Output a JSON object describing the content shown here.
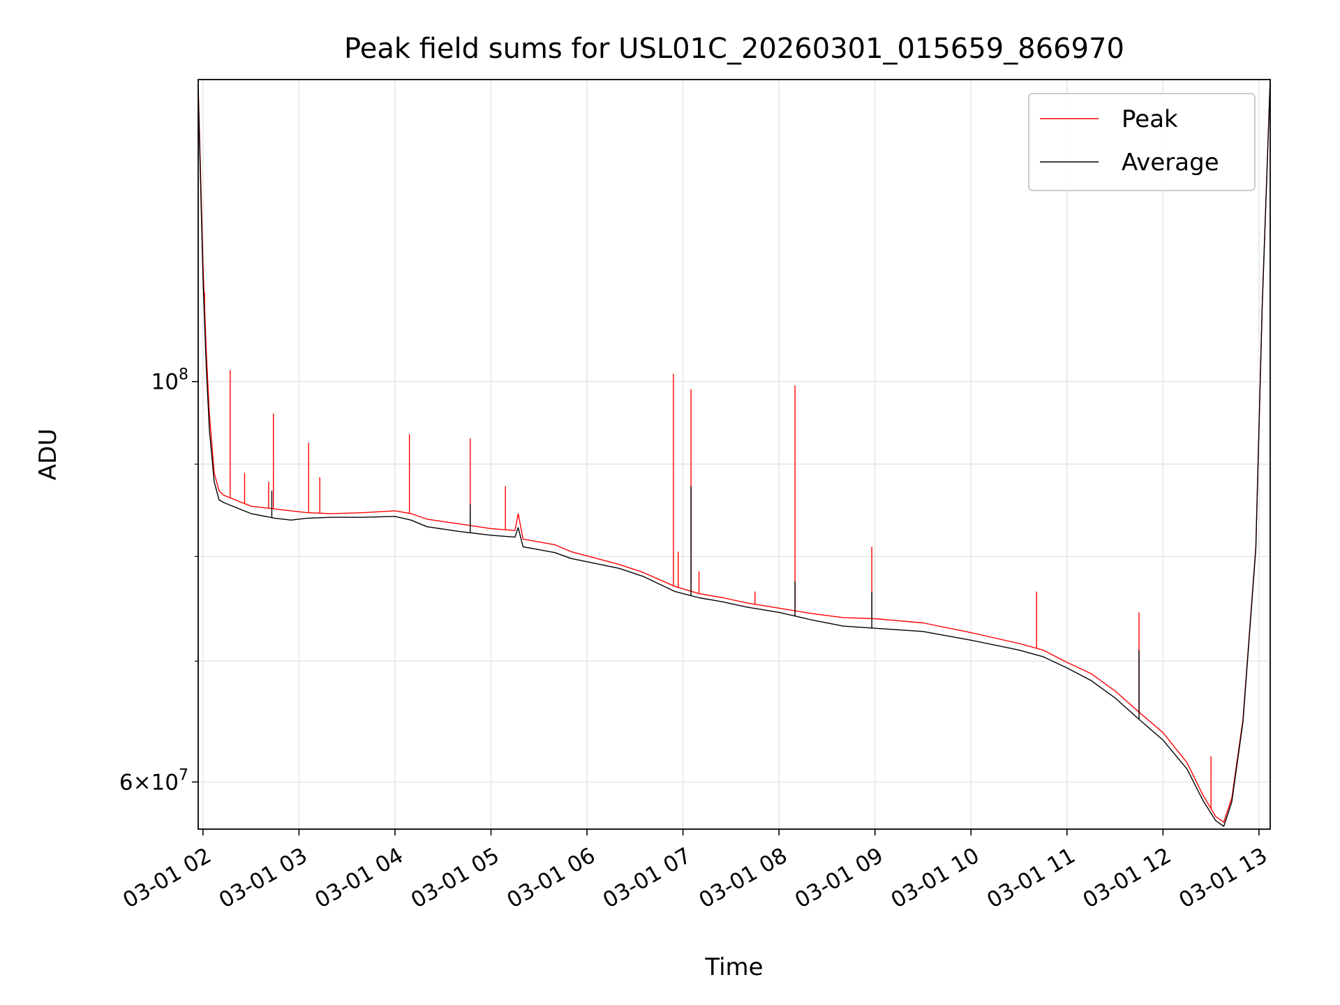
{
  "chart_data": {
    "type": "line",
    "title": "Peak field sums for USL01C_20260301_015659_866970",
    "xlabel": "Time",
    "ylabel": "ADU",
    "yscale": "log",
    "xlim": [
      "2026-03-01 01:57",
      "2026-03-01 13:07"
    ],
    "ylim": [
      56500000,
      147000000
    ],
    "grid": true,
    "legend_position": "upper-right",
    "x_ticks": [
      "2026-03-01 02:00",
      "2026-03-01 03:00",
      "2026-03-01 04:00",
      "2026-03-01 05:00",
      "2026-03-01 06:00",
      "2026-03-01 07:00",
      "2026-03-01 08:00",
      "2026-03-01 09:00",
      "2026-03-01 10:00",
      "2026-03-01 11:00",
      "2026-03-01 12:00",
      "2026-03-01 13:00"
    ],
    "x_tick_labels": [
      "03-01 02",
      "03-01 03",
      "03-01 04",
      "03-01 05",
      "03-01 06",
      "03-01 07",
      "03-01 08",
      "03-01 09",
      "03-01 10",
      "03-01 11",
      "03-01 12",
      "03-01 13"
    ],
    "y_major_ticks": [
      {
        "value": 60000000,
        "mantissa": "6",
        "base": "10",
        "exponent": "7"
      },
      {
        "value": 100000000,
        "mantissa": "",
        "base": "10",
        "exponent": "8"
      }
    ],
    "y_minor_ticks": [
      70000000,
      80000000,
      90000000
    ],
    "series": [
      {
        "name": "Peak",
        "color": "#ff0000",
        "points": [
          [
            "2026-03-01 01:57",
            146000000
          ],
          [
            "2026-03-01 02:00",
            116000000
          ],
          [
            "2026-03-01 02:02",
            104000000
          ],
          [
            "2026-03-01 02:04",
            96000000
          ],
          [
            "2026-03-01 02:07",
            89000000
          ],
          [
            "2026-03-01 02:10",
            87000000
          ],
          [
            "2026-03-01 02:13",
            86500000
          ],
          [
            "2026-03-01 02:20",
            86000000
          ],
          [
            "2026-03-01 02:30",
            85300000
          ],
          [
            "2026-03-01 02:45",
            85000000
          ],
          [
            "2026-03-01 02:55",
            84800000
          ],
          [
            "2026-03-01 03:05",
            84600000
          ],
          [
            "2026-03-01 03:20",
            84500000
          ],
          [
            "2026-03-01 03:40",
            84600000
          ],
          [
            "2026-03-01 04:00",
            84800000
          ],
          [
            "2026-03-01 04:10",
            84500000
          ],
          [
            "2026-03-01 04:20",
            83900000
          ],
          [
            "2026-03-01 04:40",
            83400000
          ],
          [
            "2026-03-01 05:00",
            82900000
          ],
          [
            "2026-03-01 05:15",
            82700000
          ],
          [
            "2026-03-01 05:17",
            84500000
          ],
          [
            "2026-03-01 05:20",
            81800000
          ],
          [
            "2026-03-01 05:40",
            81200000
          ],
          [
            "2026-03-01 05:50",
            80500000
          ],
          [
            "2026-03-01 06:20",
            79200000
          ],
          [
            "2026-03-01 06:35",
            78400000
          ],
          [
            "2026-03-01 06:55",
            77000000
          ],
          [
            "2026-03-01 07:10",
            76300000
          ],
          [
            "2026-03-01 07:25",
            75900000
          ],
          [
            "2026-03-01 07:40",
            75400000
          ],
          [
            "2026-03-01 08:00",
            74900000
          ],
          [
            "2026-03-01 08:20",
            74400000
          ],
          [
            "2026-03-01 08:40",
            74000000
          ],
          [
            "2026-03-01 09:00",
            73900000
          ],
          [
            "2026-03-01 09:30",
            73500000
          ],
          [
            "2026-03-01 10:00",
            72600000
          ],
          [
            "2026-03-01 10:30",
            71600000
          ],
          [
            "2026-03-01 10:45",
            71000000
          ],
          [
            "2026-03-01 11:00",
            69900000
          ],
          [
            "2026-03-01 11:15",
            68900000
          ],
          [
            "2026-03-01 11:30",
            67400000
          ],
          [
            "2026-03-01 11:45",
            65600000
          ],
          [
            "2026-03-01 12:00",
            63900000
          ],
          [
            "2026-03-01 12:15",
            61500000
          ],
          [
            "2026-03-01 12:25",
            59000000
          ],
          [
            "2026-03-01 12:33",
            57400000
          ],
          [
            "2026-03-01 12:38",
            57000000
          ],
          [
            "2026-03-01 12:43",
            58800000
          ],
          [
            "2026-03-01 12:50",
            65000000
          ],
          [
            "2026-03-01 12:58",
            81000000
          ],
          [
            "2026-03-01 13:02",
            110000000
          ],
          [
            "2026-03-01 13:07",
            147000000
          ]
        ],
        "spikes": [
          [
            "2026-03-01 02:01",
            112000000
          ],
          [
            "2026-03-01 02:17",
            101500000
          ],
          [
            "2026-03-01 02:26",
            89000000
          ],
          [
            "2026-03-01 02:41",
            88000000
          ],
          [
            "2026-03-01 02:44",
            96000000
          ],
          [
            "2026-03-01 03:06",
            92500000
          ],
          [
            "2026-03-01 03:13",
            88500000
          ],
          [
            "2026-03-01 04:09",
            93500000
          ],
          [
            "2026-03-01 04:47",
            93000000
          ],
          [
            "2026-03-01 05:09",
            87500000
          ],
          [
            "2026-03-01 06:54",
            101000000
          ],
          [
            "2026-03-01 06:57",
            80500000
          ],
          [
            "2026-03-01 07:05",
            99000000
          ],
          [
            "2026-03-01 07:10",
            78500000
          ],
          [
            "2026-03-01 07:45",
            76500000
          ],
          [
            "2026-03-01 08:10",
            99500000
          ],
          [
            "2026-03-01 08:58",
            81000000
          ],
          [
            "2026-03-01 10:41",
            76500000
          ],
          [
            "2026-03-01 11:45",
            74500000
          ],
          [
            "2026-03-01 12:30",
            62000000
          ]
        ]
      },
      {
        "name": "Average",
        "color": "#000000",
        "points": [
          [
            "2026-03-01 01:57",
            145000000
          ],
          [
            "2026-03-01 02:00",
            114000000
          ],
          [
            "2026-03-01 02:02",
            102000000
          ],
          [
            "2026-03-01 02:04",
            94000000
          ],
          [
            "2026-03-01 02:07",
            88000000
          ],
          [
            "2026-03-01 02:10",
            86000000
          ],
          [
            "2026-03-01 02:13",
            85700000
          ],
          [
            "2026-03-01 02:20",
            85200000
          ],
          [
            "2026-03-01 02:30",
            84500000
          ],
          [
            "2026-03-01 02:45",
            84000000
          ],
          [
            "2026-03-01 02:55",
            83800000
          ],
          [
            "2026-03-01 03:05",
            84000000
          ],
          [
            "2026-03-01 03:20",
            84100000
          ],
          [
            "2026-03-01 03:40",
            84100000
          ],
          [
            "2026-03-01 04:00",
            84200000
          ],
          [
            "2026-03-01 04:10",
            83800000
          ],
          [
            "2026-03-01 04:20",
            83100000
          ],
          [
            "2026-03-01 04:40",
            82600000
          ],
          [
            "2026-03-01 05:00",
            82200000
          ],
          [
            "2026-03-01 05:15",
            82000000
          ],
          [
            "2026-03-01 05:17",
            83000000
          ],
          [
            "2026-03-01 05:20",
            81000000
          ],
          [
            "2026-03-01 05:40",
            80400000
          ],
          [
            "2026-03-01 05:50",
            79800000
          ],
          [
            "2026-03-01 06:20",
            78800000
          ],
          [
            "2026-03-01 06:35",
            78000000
          ],
          [
            "2026-03-01 06:55",
            76500000
          ],
          [
            "2026-03-01 07:10",
            75900000
          ],
          [
            "2026-03-01 07:25",
            75500000
          ],
          [
            "2026-03-01 07:40",
            75000000
          ],
          [
            "2026-03-01 08:00",
            74500000
          ],
          [
            "2026-03-01 08:20",
            73800000
          ],
          [
            "2026-03-01 08:40",
            73200000
          ],
          [
            "2026-03-01 09:00",
            73000000
          ],
          [
            "2026-03-01 09:30",
            72700000
          ],
          [
            "2026-03-01 10:00",
            71900000
          ],
          [
            "2026-03-01 10:30",
            71000000
          ],
          [
            "2026-03-01 10:45",
            70400000
          ],
          [
            "2026-03-01 11:00",
            69400000
          ],
          [
            "2026-03-01 11:15",
            68300000
          ],
          [
            "2026-03-01 11:30",
            66800000
          ],
          [
            "2026-03-01 11:45",
            65000000
          ],
          [
            "2026-03-01 12:00",
            63300000
          ],
          [
            "2026-03-01 12:15",
            61000000
          ],
          [
            "2026-03-01 12:25",
            58600000
          ],
          [
            "2026-03-01 12:33",
            57100000
          ],
          [
            "2026-03-01 12:38",
            56700000
          ],
          [
            "2026-03-01 12:43",
            58500000
          ],
          [
            "2026-03-01 12:50",
            64800000
          ],
          [
            "2026-03-01 12:58",
            80800000
          ],
          [
            "2026-03-01 13:02",
            110000000
          ],
          [
            "2026-03-01 13:07",
            147000000
          ]
        ],
        "spikes": [
          [
            "2026-03-01 02:43",
            87000000
          ],
          [
            "2026-03-01 04:47",
            85500000
          ],
          [
            "2026-03-01 07:05",
            87500000
          ],
          [
            "2026-03-01 08:10",
            77500000
          ],
          [
            "2026-03-01 08:58",
            76500000
          ],
          [
            "2026-03-01 11:45",
            71000000
          ]
        ]
      }
    ]
  }
}
